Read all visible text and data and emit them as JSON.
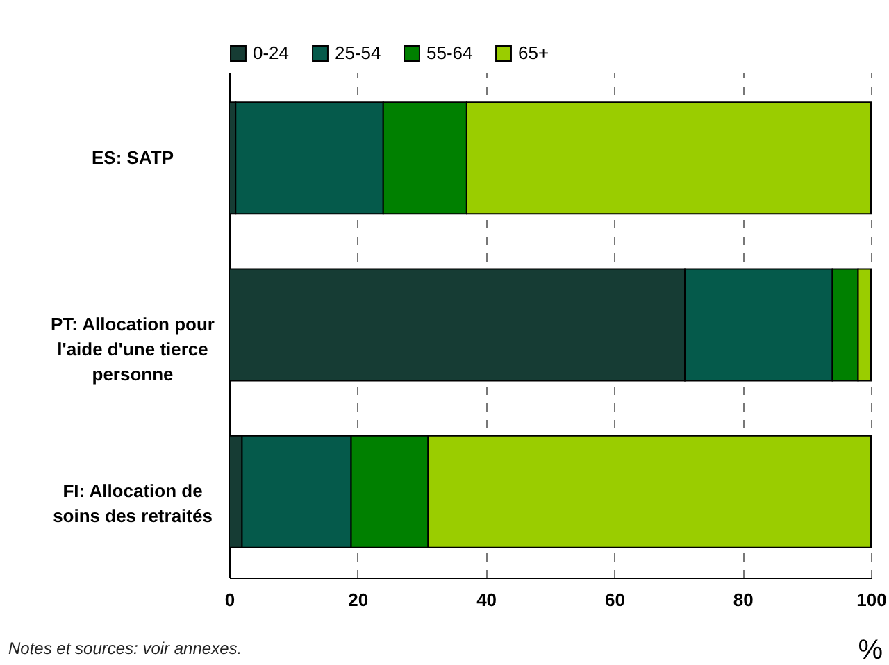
{
  "chart_data": {
    "type": "bar",
    "orientation": "horizontal",
    "stacked": true,
    "categories": [
      "ES: SATP",
      "PT: Allocation pour l'aide d'une tierce personne",
      "FI: Allocation de soins des retraités"
    ],
    "series": [
      {
        "name": "0-24",
        "color": "#163c34",
        "values": [
          1,
          71,
          2
        ]
      },
      {
        "name": "25-54",
        "color": "#055a4b",
        "values": [
          23,
          23,
          17
        ]
      },
      {
        "name": "55-64",
        "color": "#008000",
        "values": [
          13,
          4,
          12
        ]
      },
      {
        "name": "65+",
        "color": "#9acd00",
        "values": [
          63,
          2,
          69
        ]
      }
    ],
    "xlim": [
      0,
      100
    ],
    "xticks": [
      0,
      20,
      40,
      60,
      80,
      100
    ],
    "xlabel": "%",
    "grid": "x",
    "legend": "top",
    "annotations": [
      "Notes et sources: voir annexes."
    ]
  }
}
